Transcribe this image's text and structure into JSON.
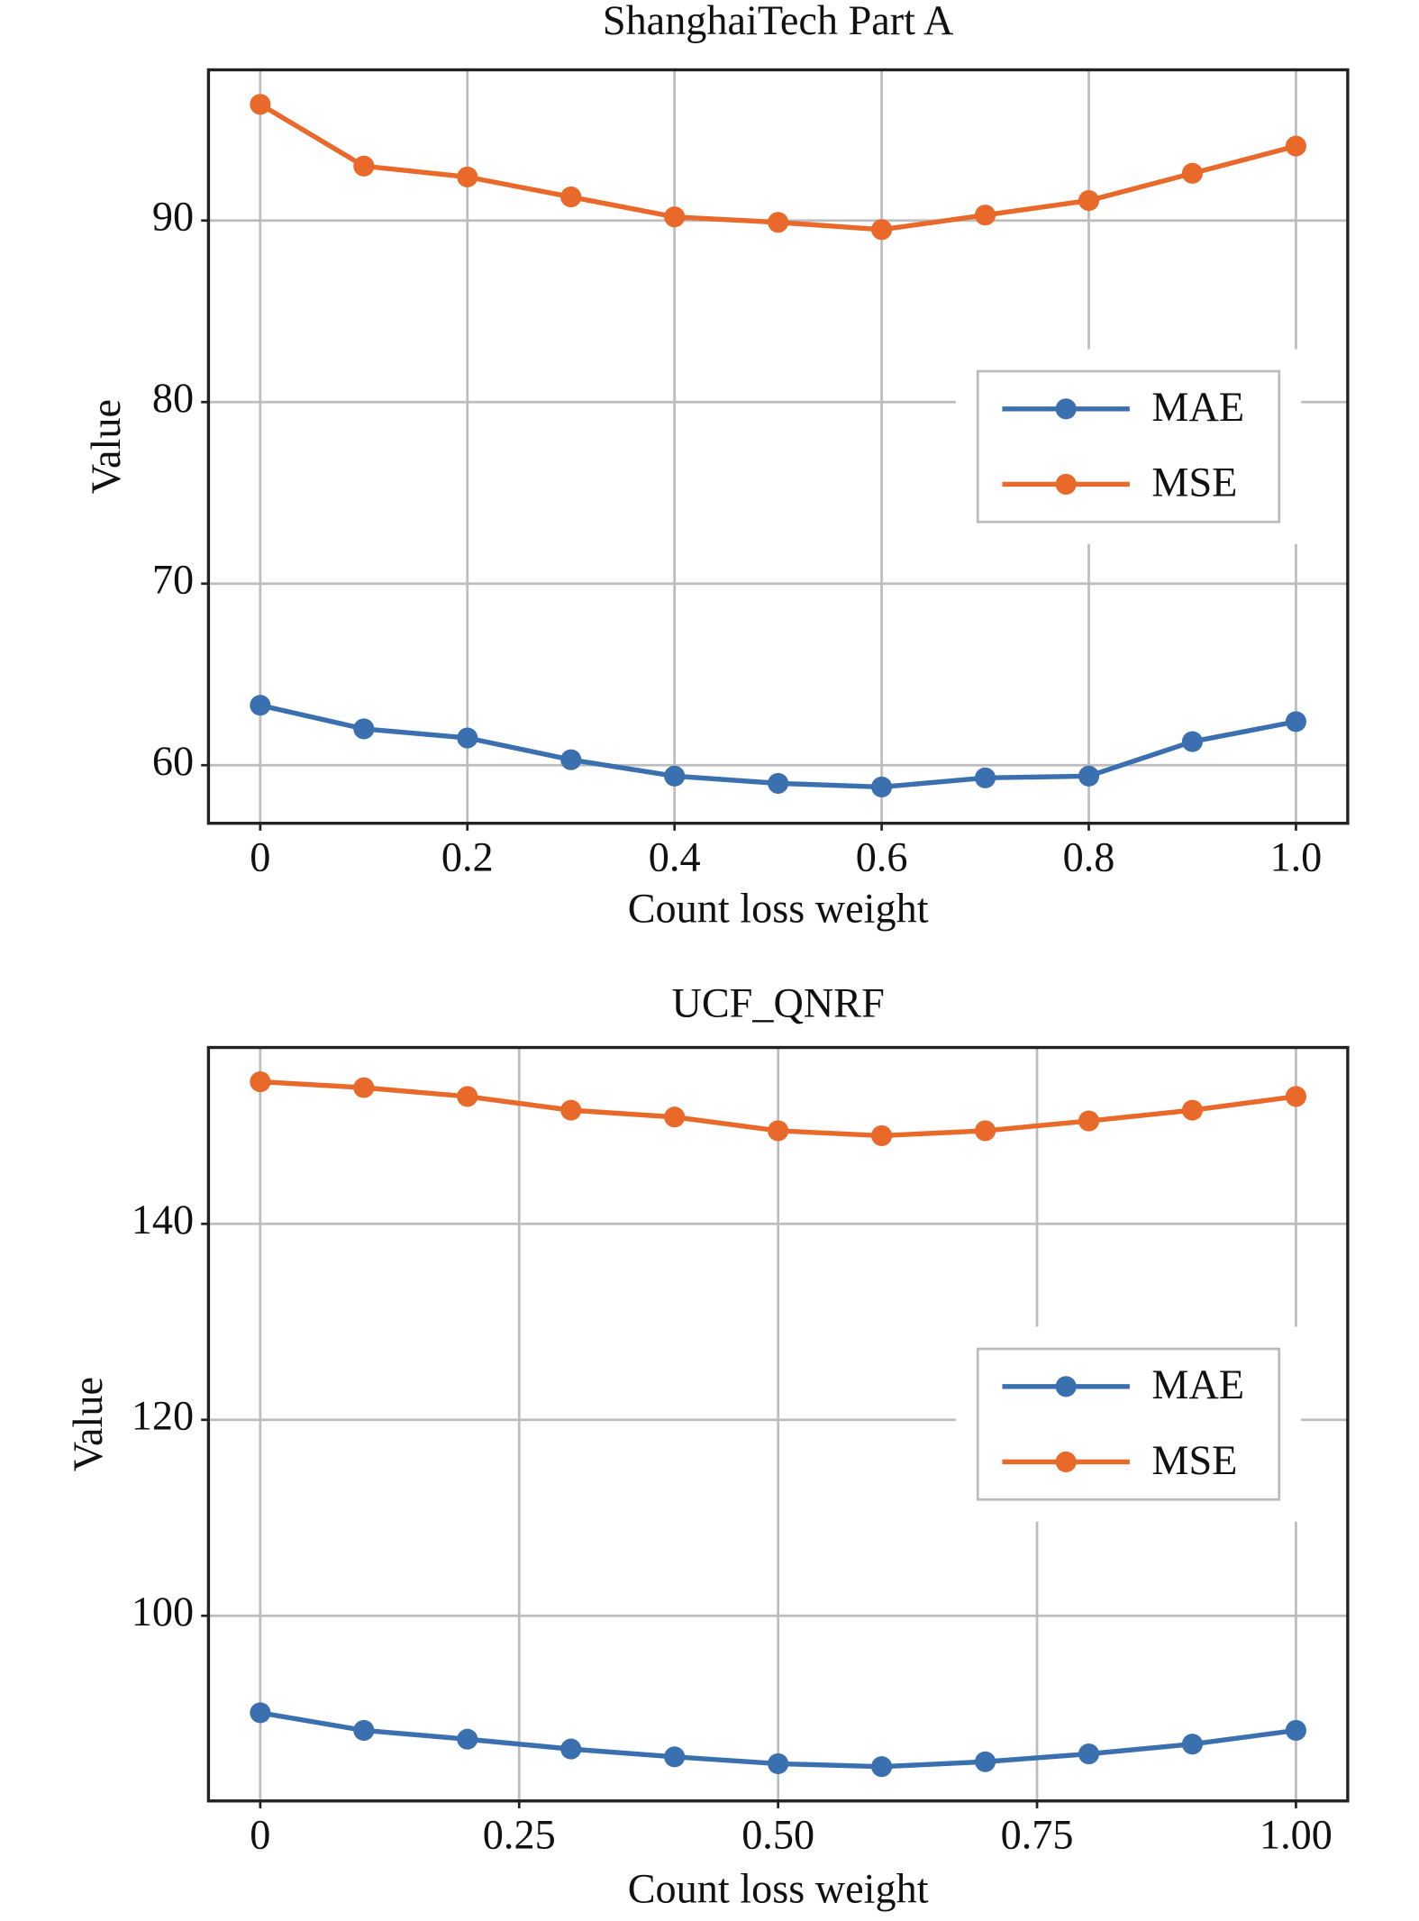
{
  "chart_data": [
    {
      "type": "line",
      "title": "ShanghaiTech Part A",
      "xlabel": "Count loss weight",
      "ylabel": "Value",
      "x": [
        0,
        0.1,
        0.2,
        0.3,
        0.4,
        0.5,
        0.6,
        0.7,
        0.8,
        0.9,
        1.0
      ],
      "series": [
        {
          "name": "MAE",
          "color": "#3a6fb0",
          "values": [
            63.3,
            62.0,
            61.5,
            60.3,
            59.4,
            59.0,
            58.8,
            59.3,
            59.4,
            61.3,
            62.4
          ]
        },
        {
          "name": "MSE",
          "color": "#e8692a",
          "values": [
            96.4,
            93.0,
            92.4,
            91.3,
            90.2,
            89.9,
            89.5,
            90.3,
            91.1,
            92.6,
            94.1
          ]
        }
      ],
      "xlim": [
        -0.05,
        1.05
      ],
      "ylim": [
        56.8,
        98.3
      ],
      "xticks": [
        0,
        0.2,
        0.4,
        0.6,
        0.8,
        {
          "value": 1,
          "label": "1.0"
        }
      ],
      "yticks": [
        60,
        70,
        80,
        90
      ],
      "grid": true,
      "legend": "center right"
    },
    {
      "type": "line",
      "title": "UCF_QNRF",
      "xlabel": "Count loss weight",
      "ylabel": "Value",
      "x": [
        0,
        0.1,
        0.2,
        0.3,
        0.4,
        0.5,
        0.6,
        0.7,
        0.8,
        0.9,
        1.0
      ],
      "series": [
        {
          "name": "MAE",
          "color": "#3a6fb0",
          "values": [
            90.1,
            88.3,
            87.4,
            86.4,
            85.6,
            84.9,
            84.6,
            85.1,
            85.9,
            86.9,
            88.3
          ]
        },
        {
          "name": "MSE",
          "color": "#e8692a",
          "values": [
            154.5,
            153.9,
            153.0,
            151.6,
            150.9,
            149.5,
            149.0,
            149.5,
            150.5,
            151.6,
            153.0
          ]
        }
      ],
      "xlim": [
        -0.05,
        1.05
      ],
      "ylim": [
        81.1,
        158
      ],
      "xticks": [
        0,
        0.25,
        {
          "value": 0.5,
          "label": "0.50"
        },
        0.75,
        {
          "value": 1,
          "label": "1.00"
        }
      ],
      "yticks": [
        100,
        120,
        140
      ],
      "grid": true,
      "legend": "center right"
    }
  ]
}
